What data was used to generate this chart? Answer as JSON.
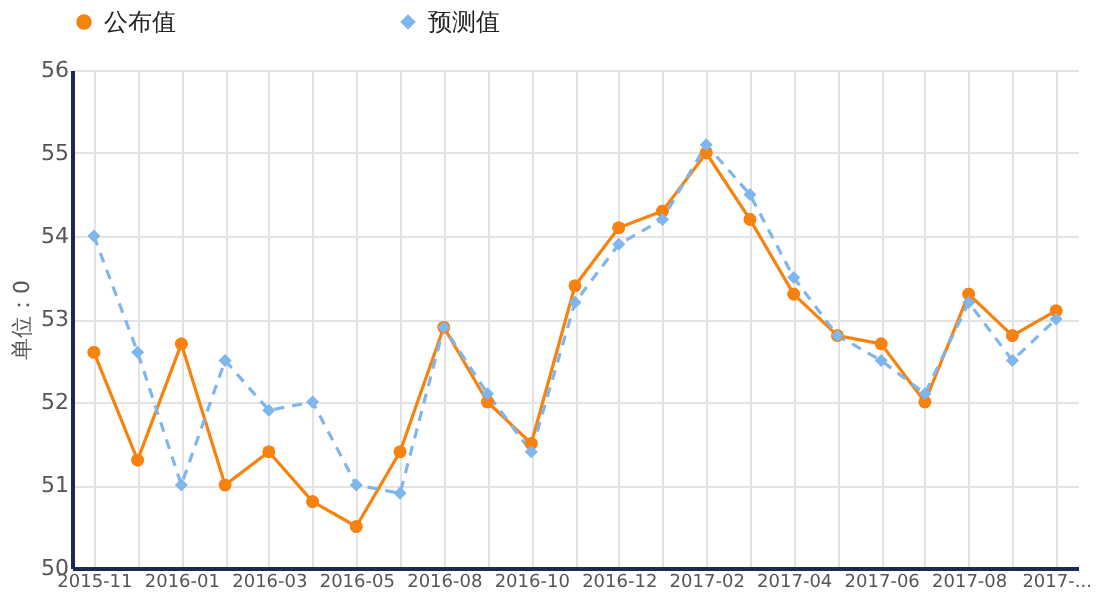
{
  "chart_data": {
    "type": "line",
    "ylabel": "单位：0",
    "categories": [
      "2015-11",
      null,
      "2016-01",
      null,
      "2016-03",
      null,
      "2016-05",
      null,
      "2016-08",
      null,
      "2016-10",
      null,
      "2016-12",
      null,
      "2017-02",
      null,
      "2017-04",
      null,
      "2017-06",
      null,
      "2017-08",
      null,
      "2017-..."
    ],
    "series": [
      {
        "name": "公布值",
        "color": "#f7820f",
        "marker": "circle",
        "line_style": "solid",
        "values": [
          52.6,
          51.3,
          52.7,
          51.0,
          51.4,
          50.8,
          50.5,
          51.4,
          52.9,
          52.0,
          51.5,
          53.4,
          54.1,
          54.3,
          55.0,
          54.2,
          53.3,
          52.8,
          52.7,
          52.0,
          53.3,
          52.8,
          53.1
        ]
      },
      {
        "name": "预测值",
        "color": "#7fb6ee",
        "marker": "diamond",
        "line_style": "dashed",
        "values": [
          54.0,
          52.6,
          51.0,
          52.5,
          51.9,
          52.0,
          51.0,
          50.9,
          52.9,
          52.1,
          51.4,
          53.2,
          53.9,
          54.2,
          55.1,
          54.5,
          53.5,
          52.8,
          52.5,
          52.1,
          53.2,
          52.5,
          53.0
        ]
      }
    ],
    "ylim": [
      50,
      56
    ],
    "yticks": [
      50,
      51,
      52,
      53,
      54,
      55,
      56
    ],
    "grid": true,
    "legend": "top"
  }
}
